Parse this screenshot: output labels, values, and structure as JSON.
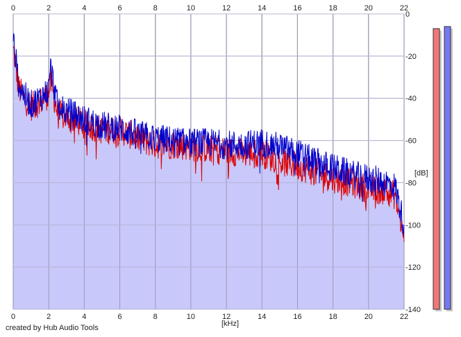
{
  "credit": "created by Hub Audio Tools",
  "chart_data": {
    "type": "line",
    "xlabel": "[kHz]",
    "ylabel": "[dB]",
    "xlim": [
      0,
      22
    ],
    "ylim": [
      -140,
      0
    ],
    "x_ticks": [
      "0",
      "2",
      "4",
      "6",
      "8",
      "10",
      "12",
      "14",
      "16",
      "18",
      "20",
      "22"
    ],
    "y_ticks": [
      "0",
      "-20",
      "-40",
      "-60",
      "-80",
      "-100",
      "-120",
      "-140"
    ],
    "grid": true,
    "fill_color": "#c8c8fa",
    "series": [
      {
        "color": "#dd0000",
        "x": [
          0,
          0.1,
          0.3,
          0.6,
          1.0,
          1.5,
          2.0,
          2.1,
          2.5,
          3.0,
          4.0,
          5.0,
          6.0,
          7.0,
          8.0,
          9.0,
          10.0,
          11.0,
          12.0,
          13.0,
          14.0,
          15.0,
          16.0,
          17.0,
          18.0,
          19.0,
          20.0,
          21.0,
          21.5,
          22.0
        ],
        "y": [
          -16,
          -22,
          -35,
          -40,
          -44,
          -42,
          -38,
          -32,
          -47,
          -49,
          -52,
          -55,
          -55,
          -59,
          -62,
          -62,
          -63,
          -64,
          -65,
          -66,
          -66,
          -70,
          -72,
          -75,
          -78,
          -80,
          -83,
          -84,
          -86,
          -108
        ]
      },
      {
        "color": "#0000cc",
        "x": [
          0,
          0.1,
          0.3,
          0.6,
          1.0,
          1.5,
          2.0,
          2.1,
          2.5,
          3.0,
          4.0,
          5.0,
          6.0,
          7.0,
          8.0,
          9.0,
          10.0,
          11.0,
          12.0,
          13.0,
          14.0,
          15.0,
          16.0,
          17.0,
          18.0,
          19.0,
          20.0,
          21.0,
          21.5,
          22.0
        ],
        "y": [
          -13,
          -18,
          -33,
          -38,
          -43,
          -40,
          -36,
          -25,
          -44,
          -46,
          -50,
          -53,
          -54,
          -57,
          -59,
          -60,
          -61,
          -61,
          -62,
          -62,
          -61,
          -63,
          -66,
          -70,
          -73,
          -76,
          -78,
          -80,
          -82,
          -100
        ]
      }
    ]
  },
  "meters": [
    {
      "color": "#f07878",
      "level_db": -7
    },
    {
      "color": "#7878f0",
      "level_db": -6
    }
  ]
}
